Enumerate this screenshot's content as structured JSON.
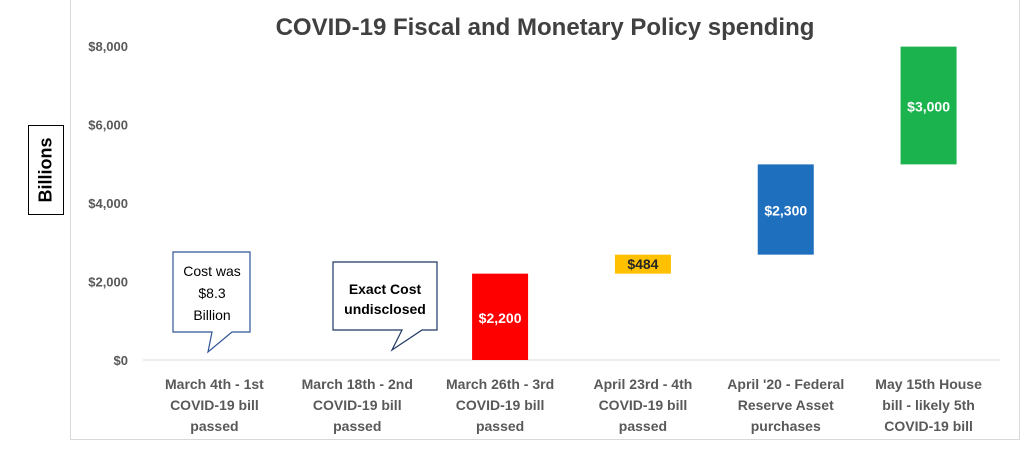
{
  "chart_data": {
    "type": "bar",
    "title": "COVID-19 Fiscal and Monetary  Policy spending",
    "ylabel": "Billions",
    "ylim": [
      0,
      8000
    ],
    "yticks": [
      "$0",
      "$2,000",
      "$4,000",
      "$6,000",
      "$8,000"
    ],
    "ytick_values": [
      0,
      2000,
      4000,
      6000,
      8000
    ],
    "grid": false,
    "categories": [
      [
        "March 4th - 1st",
        "COVID-19 bill",
        "passed"
      ],
      [
        "March 18th - 2nd",
        "COVID-19 bill",
        "passed"
      ],
      [
        "March 26th - 3rd",
        "COVID-19 bill",
        "passed"
      ],
      [
        "April 23rd - 4th",
        "COVID-19 bill",
        "passed"
      ],
      [
        "April '20 - Federal",
        "Reserve Asset",
        "purchases"
      ],
      [
        "May 15th House",
        "bill - likely 5th",
        "COVID-19 bill"
      ]
    ],
    "bars": [
      {
        "base": 0,
        "value": 0,
        "label": "",
        "color": ""
      },
      {
        "base": 0,
        "value": 0,
        "label": "",
        "color": ""
      },
      {
        "base": 0,
        "value": 2200,
        "label": "$2,200",
        "color": "#ff0000",
        "label_color": "#ffffff"
      },
      {
        "base": 2200,
        "value": 484,
        "label": "$484",
        "color": "#ffc000",
        "label_color": "#262626"
      },
      {
        "base": 2684,
        "value": 2300,
        "label": "$2,300",
        "color": "#1f6fbf",
        "label_color": "#ffffff"
      },
      {
        "base": 4984,
        "value": 3000,
        "label": "$3,000",
        "color": "#1ab34d",
        "label_color": "#ffffff"
      }
    ]
  },
  "callouts": [
    {
      "lines": [
        "Cost was",
        "$8.3",
        "Billion"
      ]
    },
    {
      "lines": [
        "Exact Cost",
        "undisclosed"
      ]
    }
  ]
}
